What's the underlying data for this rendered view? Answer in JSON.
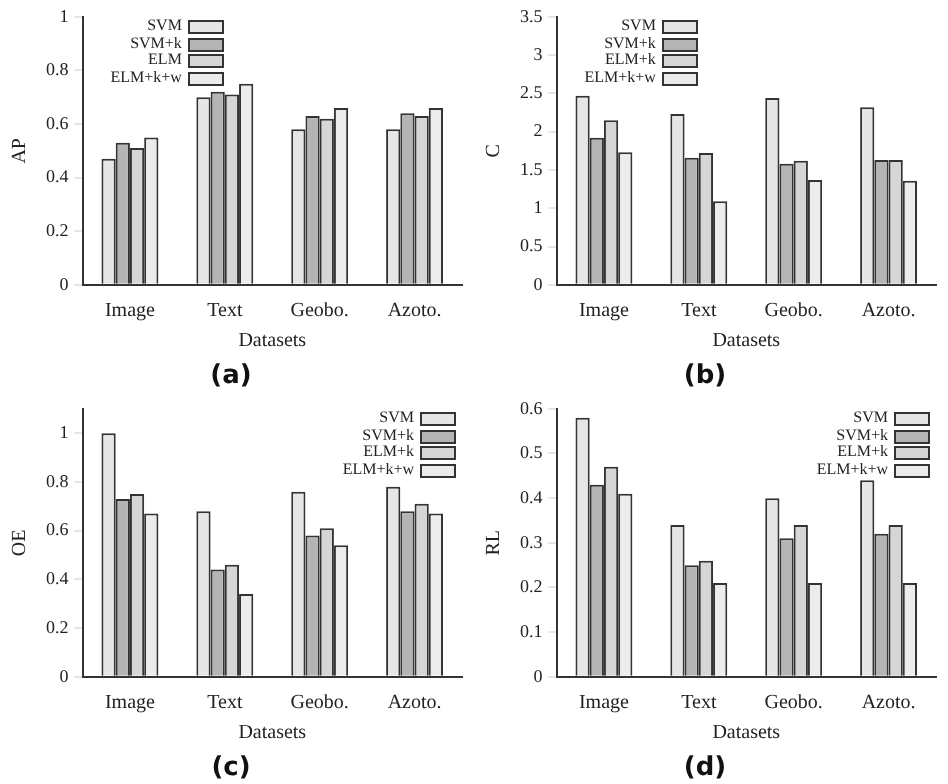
{
  "chart_data": [
    {
      "type": "bar",
      "title": "(a)",
      "xlabel": "Datasets",
      "ylabel": "AP",
      "categories": [
        "Image",
        "Text",
        "Geobo.",
        "Azoto."
      ],
      "ylim": [
        0,
        1
      ],
      "yticks": [
        0,
        0.2,
        0.4,
        0.6,
        0.8,
        1
      ],
      "grid": false,
      "legend": "top left",
      "series": [
        {
          "name": "SVM",
          "color": "#e6e6e6",
          "values": [
            0.47,
            0.7,
            0.58,
            0.58
          ]
        },
        {
          "name": "SVM+k",
          "color": "#b4b4b4",
          "values": [
            0.53,
            0.72,
            0.63,
            0.64
          ]
        },
        {
          "name": "ELM",
          "color": "#d6d6d6",
          "values": [
            0.51,
            0.71,
            0.62,
            0.63
          ]
        },
        {
          "name": "ELM+k+w",
          "color": "#ececec",
          "values": [
            0.55,
            0.75,
            0.66,
            0.66
          ]
        }
      ]
    },
    {
      "type": "bar",
      "title": "(b)",
      "xlabel": "Datasets",
      "ylabel": "C",
      "categories": [
        "Image",
        "Text",
        "Geobo.",
        "Azoto."
      ],
      "ylim": [
        0,
        3.5
      ],
      "yticks": [
        0,
        0.5,
        1,
        1.5,
        2,
        2.5,
        3,
        3.5
      ],
      "grid": false,
      "legend": "top left",
      "series": [
        {
          "name": "SVM",
          "color": "#e6e6e6",
          "values": [
            2.47,
            2.23,
            2.44,
            2.32
          ]
        },
        {
          "name": "SVM+k",
          "color": "#b4b4b4",
          "values": [
            1.92,
            1.66,
            1.58,
            1.63
          ]
        },
        {
          "name": "ELM+k",
          "color": "#d6d6d6",
          "values": [
            2.15,
            1.72,
            1.62,
            1.63
          ]
        },
        {
          "name": "ELM+k+w",
          "color": "#ececec",
          "values": [
            1.73,
            1.09,
            1.37,
            1.36
          ]
        }
      ]
    },
    {
      "type": "bar",
      "title": "(c)",
      "xlabel": "Datasets",
      "ylabel": "OE",
      "categories": [
        "Image",
        "Text",
        "Geobo.",
        "Azoto."
      ],
      "ylim": [
        0,
        1.1
      ],
      "yticks": [
        0,
        0.2,
        0.4,
        0.6,
        0.8,
        1
      ],
      "grid": false,
      "legend": "top right",
      "series": [
        {
          "name": "SVM",
          "color": "#e6e6e6",
          "values": [
            1.0,
            0.68,
            0.76,
            0.78
          ]
        },
        {
          "name": "SVM+k",
          "color": "#b4b4b4",
          "values": [
            0.73,
            0.44,
            0.58,
            0.68
          ]
        },
        {
          "name": "ELM+k",
          "color": "#d6d6d6",
          "values": [
            0.75,
            0.46,
            0.61,
            0.71
          ]
        },
        {
          "name": "ELM+k+w",
          "color": "#ececec",
          "values": [
            0.67,
            0.34,
            0.54,
            0.67
          ]
        }
      ]
    },
    {
      "type": "bar",
      "title": "(d)",
      "xlabel": "Datasets",
      "ylabel": "RL",
      "categories": [
        "Image",
        "Text",
        "Geobo.",
        "Azoto."
      ],
      "ylim": [
        0,
        0.6
      ],
      "yticks": [
        0,
        0.1,
        0.2,
        0.3,
        0.4,
        0.5,
        0.6
      ],
      "grid": false,
      "legend": "top right",
      "series": [
        {
          "name": "SVM",
          "color": "#e6e6e6",
          "values": [
            0.58,
            0.34,
            0.4,
            0.44
          ]
        },
        {
          "name": "SVM+k",
          "color": "#b4b4b4",
          "values": [
            0.43,
            0.25,
            0.31,
            0.32
          ]
        },
        {
          "name": "ELM+k",
          "color": "#d6d6d6",
          "values": [
            0.47,
            0.26,
            0.34,
            0.34
          ]
        },
        {
          "name": "ELM+k+w",
          "color": "#ececec",
          "values": [
            0.41,
            0.21,
            0.21,
            0.21
          ]
        }
      ]
    }
  ]
}
